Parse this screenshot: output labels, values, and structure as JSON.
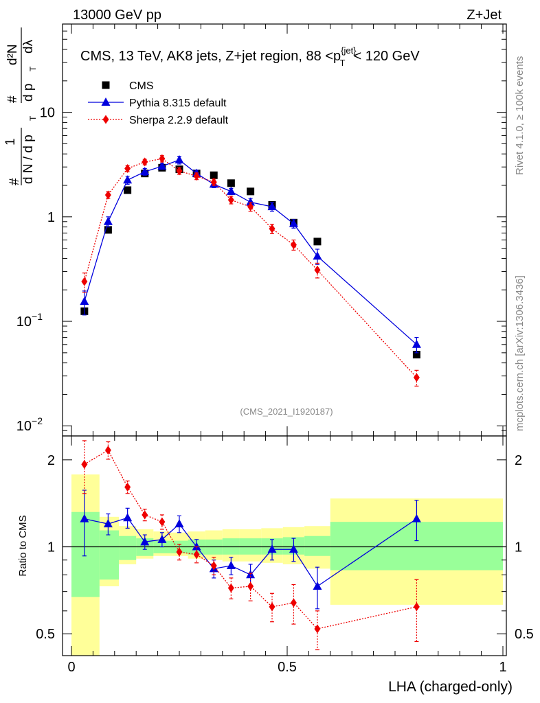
{
  "header": {
    "left": "13000 GeV pp",
    "right": "Z+Jet"
  },
  "side_labels": {
    "rivet": "Rivet 4.1.0, ≥ 100k events",
    "mcplots": "mcplots.cern.ch [arXiv:1306.3436]"
  },
  "analysis_id": "(CMS_2021_I1920187)",
  "chart_data": [
    {
      "type": "line",
      "title": "CMS, 13 TeV, AK8 jets, Z+jet region, 88 <p_T^{jet}< 120 GeV",
      "title_parts": {
        "main": "CMS, 13 TeV, AK8 jets, Z+jet region, 88 <p",
        "sup": "{jet}",
        "sub": "T",
        "tail": "< 120 GeV"
      },
      "ylabel_parts": {
        "hash": "#",
        "one": "1",
        "dN": "d N / d p",
        "T": "T",
        "d2N": "d²N",
        "dpT": "d p",
        "dl": "dλ"
      },
      "xlim": [
        0,
        1
      ],
      "yscale": "log",
      "ylim": [
        0.008,
        70
      ],
      "ytick_labels": [
        {
          "value": 10,
          "base": "10",
          "exp": ""
        },
        {
          "value": 1,
          "base": "1",
          "exp": ""
        },
        {
          "value": 0.1,
          "base": "10",
          "exp": "−1"
        },
        {
          "value": 0.01,
          "base": "10",
          "exp": "−2"
        }
      ],
      "legend": [
        "CMS",
        "Pythia 8.315 default",
        "Sherpa 2.2.9 default"
      ],
      "legend_position": "top-left",
      "series": [
        {
          "name": "CMS",
          "color": "#000000",
          "marker": "square",
          "x": [
            0.03,
            0.085,
            0.13,
            0.17,
            0.21,
            0.25,
            0.29,
            0.33,
            0.37,
            0.415,
            0.465,
            0.515,
            0.57,
            0.8
          ],
          "y": [
            0.125,
            0.75,
            1.8,
            2.6,
            2.95,
            2.85,
            2.6,
            2.5,
            2.1,
            1.75,
            1.3,
            0.88,
            0.58,
            0.048
          ]
        },
        {
          "name": "Pythia 8.315 default",
          "color": "#0000dd",
          "marker": "triangle",
          "x": [
            0.03,
            0.085,
            0.13,
            0.17,
            0.21,
            0.25,
            0.29,
            0.33,
            0.37,
            0.415,
            0.465,
            0.515,
            0.57,
            0.8
          ],
          "y": [
            0.155,
            0.9,
            2.25,
            2.7,
            3.05,
            3.5,
            2.6,
            2.05,
            1.75,
            1.38,
            1.25,
            0.86,
            0.42,
            0.06
          ],
          "err": [
            0.04,
            0.1,
            0.2,
            0.2,
            0.2,
            0.3,
            0.2,
            0.15,
            0.12,
            0.12,
            0.12,
            0.08,
            0.07,
            0.01
          ]
        },
        {
          "name": "Sherpa 2.2.9 default",
          "color": "#ee0000",
          "marker": "diamond",
          "x": [
            0.03,
            0.085,
            0.13,
            0.17,
            0.21,
            0.25,
            0.29,
            0.33,
            0.37,
            0.415,
            0.465,
            0.515,
            0.57,
            0.8
          ],
          "y": [
            0.24,
            1.62,
            2.9,
            3.35,
            3.6,
            2.75,
            2.45,
            2.15,
            1.45,
            1.25,
            0.77,
            0.54,
            0.31,
            0.029
          ],
          "err": [
            0.05,
            0.12,
            0.2,
            0.2,
            0.25,
            0.2,
            0.18,
            0.15,
            0.12,
            0.12,
            0.08,
            0.06,
            0.05,
            0.005
          ]
        }
      ]
    },
    {
      "type": "line",
      "title": "",
      "xlabel": "LHA (charged-only)",
      "ylabel": "Ratio to CMS",
      "xlim": [
        0,
        1
      ],
      "yscale": "log",
      "ylim": [
        0.42,
        2.42
      ],
      "xticks": [
        0,
        0.5,
        1
      ],
      "xtick_labels": [
        "0",
        "0.5",
        "1"
      ],
      "yticks": [
        0.5,
        1,
        2
      ],
      "ytick_labels": [
        "0.5",
        "1",
        "2"
      ],
      "reference_line": 1,
      "bands": {
        "edges": [
          0,
          0.065,
          0.11,
          0.15,
          0.19,
          0.23,
          0.27,
          0.31,
          0.35,
          0.39,
          0.44,
          0.49,
          0.54,
          0.6,
          1.0
        ],
        "stat_low": [
          0.67,
          0.77,
          0.9,
          0.93,
          0.95,
          0.95,
          0.94,
          0.94,
          0.94,
          0.94,
          0.94,
          0.94,
          0.93,
          0.83
        ],
        "stat_high": [
          1.32,
          1.14,
          1.09,
          1.07,
          1.05,
          1.05,
          1.06,
          1.06,
          1.07,
          1.07,
          1.07,
          1.08,
          1.09,
          1.22
        ],
        "tot_low": [
          0.4,
          0.73,
          0.87,
          0.91,
          0.93,
          0.93,
          0.91,
          0.9,
          0.89,
          0.89,
          0.88,
          0.87,
          0.84,
          0.63
        ],
        "tot_high": [
          1.78,
          1.27,
          1.18,
          1.15,
          1.13,
          1.12,
          1.13,
          1.14,
          1.15,
          1.15,
          1.16,
          1.17,
          1.18,
          1.47
        ],
        "stat_color": "#99ff99",
        "total_color": "#ffff99"
      },
      "series": [
        {
          "name": "Pythia 8.315 default",
          "color": "#0000dd",
          "marker": "triangle",
          "x": [
            0.03,
            0.085,
            0.13,
            0.17,
            0.21,
            0.25,
            0.29,
            0.33,
            0.37,
            0.415,
            0.465,
            0.515,
            0.57,
            0.8
          ],
          "y": [
            1.25,
            1.2,
            1.26,
            1.04,
            1.06,
            1.2,
            1.0,
            0.84,
            0.86,
            0.8,
            0.98,
            0.98,
            0.73,
            1.25
          ],
          "err": [
            0.32,
            0.1,
            0.1,
            0.06,
            0.06,
            0.08,
            0.06,
            0.06,
            0.06,
            0.07,
            0.08,
            0.09,
            0.12,
            0.2
          ]
        },
        {
          "name": "Sherpa 2.2.9 default",
          "color": "#ee0000",
          "marker": "diamond",
          "x": [
            0.03,
            0.085,
            0.13,
            0.17,
            0.21,
            0.25,
            0.29,
            0.33,
            0.37,
            0.415,
            0.465,
            0.515,
            0.57,
            0.8
          ],
          "y": [
            1.93,
            2.16,
            1.61,
            1.29,
            1.22,
            0.96,
            0.94,
            0.86,
            0.72,
            0.73,
            0.62,
            0.64,
            0.52,
            0.62
          ],
          "err": [
            0.4,
            0.15,
            0.08,
            0.06,
            0.07,
            0.06,
            0.06,
            0.06,
            0.06,
            0.08,
            0.07,
            0.1,
            0.08,
            0.15
          ]
        }
      ]
    }
  ]
}
